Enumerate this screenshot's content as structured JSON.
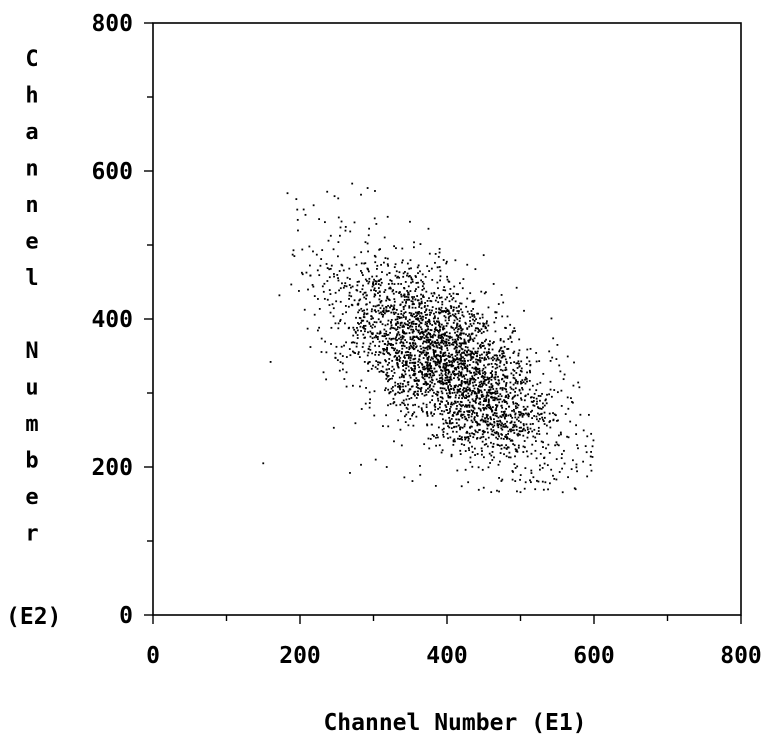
{
  "chart_data": {
    "type": "scatter",
    "title": "",
    "xlabel": "Channel Number (E1)",
    "ylabel_lines": [
      "Channel",
      "Number"
    ],
    "ylabel_suffix": "(E2)",
    "xlim": [
      0,
      800
    ],
    "ylim": [
      0,
      800
    ],
    "xticks": [
      0,
      200,
      400,
      600,
      800
    ],
    "yticks": [
      0,
      200,
      400,
      600,
      800
    ],
    "xtick_labels": [
      "0",
      "200",
      "400",
      "600",
      "800"
    ],
    "ytick_labels": [
      "0",
      "200",
      "400",
      "600",
      "800"
    ],
    "grid": false,
    "legend": "none",
    "point_color": "#000000",
    "distribution": {
      "count": 3200,
      "center": [
        400,
        340
      ],
      "std": [
        75,
        70
      ],
      "correlation": -0.65
    },
    "points": [
      [
        150,
        205
      ],
      [
        160,
        342
      ],
      [
        172,
        432
      ],
      [
        183,
        570
      ],
      [
        190,
        487
      ],
      [
        195,
        562
      ],
      [
        205,
        548
      ],
      [
        226,
        535
      ],
      [
        237,
        572
      ],
      [
        247,
        566
      ],
      [
        252,
        563
      ],
      [
        271,
        583
      ],
      [
        283,
        568
      ],
      [
        292,
        577
      ],
      [
        302,
        573
      ],
      [
        268,
        192
      ],
      [
        283,
        203
      ],
      [
        303,
        210
      ],
      [
        318,
        200
      ],
      [
        342,
        186
      ],
      [
        353,
        181
      ],
      [
        420,
        174
      ],
      [
        450,
        172
      ],
      [
        468,
        168
      ],
      [
        500,
        166
      ],
      [
        520,
        170
      ],
      [
        540,
        178
      ],
      [
        575,
        170
      ],
      [
        590,
        220
      ],
      [
        598,
        228
      ],
      [
        560,
        325
      ],
      [
        572,
        310
      ],
      [
        246,
        253
      ],
      [
        232,
        328
      ]
    ]
  }
}
